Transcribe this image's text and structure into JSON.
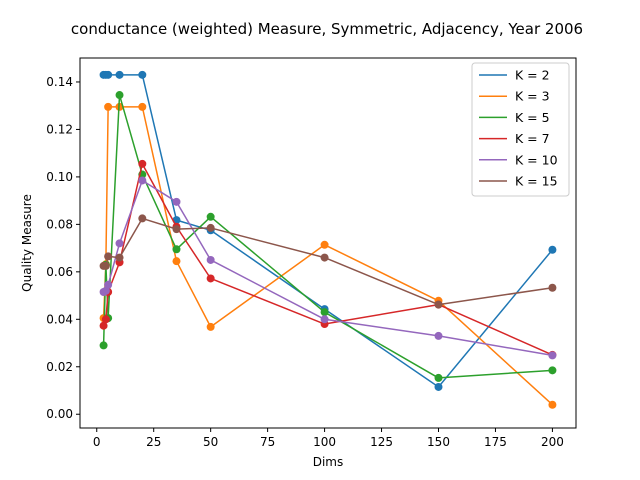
{
  "chart_data": {
    "type": "line",
    "title": "conductance (weighted) Measure, Symmetric, Adjacency, Year 2006",
    "xlabel": "Dims",
    "ylabel": "Quality Measure",
    "xlim": [
      -7.35,
      210.35
    ],
    "ylim": [
      -0.0058,
      0.1501
    ],
    "xticks": [
      0,
      25,
      50,
      75,
      100,
      125,
      150,
      175,
      200
    ],
    "yticks": [
      0.0,
      0.02,
      0.04,
      0.06,
      0.08,
      0.1,
      0.12,
      0.14
    ],
    "ytick_labels": [
      "0.00",
      "0.02",
      "0.04",
      "0.06",
      "0.08",
      "0.10",
      "0.12",
      "0.14"
    ],
    "grid": false,
    "legend_position": "top-right",
    "x": [
      3,
      4,
      5,
      10,
      20,
      35,
      50,
      100,
      150,
      200
    ],
    "series": [
      {
        "name": "K = 2",
        "color": "#1f77b4",
        "values": [
          0.143,
          0.143,
          0.143,
          0.143,
          0.143,
          0.0818,
          0.0775,
          0.0443,
          0.0115,
          0.0693
        ]
      },
      {
        "name": "K = 3",
        "color": "#ff7f0e",
        "values": [
          0.0405,
          0.0632,
          0.1295,
          0.1295,
          0.1295,
          0.0645,
          0.0368,
          0.0714,
          0.0478,
          0.004
        ]
      },
      {
        "name": "K = 5",
        "color": "#2ca02c",
        "values": [
          0.029,
          0.063,
          0.0405,
          0.1345,
          0.101,
          0.0695,
          0.0832,
          0.043,
          0.0153,
          0.0185
        ]
      },
      {
        "name": "K = 7",
        "color": "#d62728",
        "values": [
          0.0373,
          0.04,
          0.0515,
          0.064,
          0.1055,
          0.079,
          0.0572,
          0.038,
          0.0462,
          0.025
        ]
      },
      {
        "name": "K = 10",
        "color": "#9467bd",
        "values": [
          0.0515,
          0.052,
          0.0545,
          0.072,
          0.0985,
          0.0895,
          0.065,
          0.04,
          0.033,
          0.0248
        ]
      },
      {
        "name": "K = 15",
        "color": "#8c564b",
        "values": [
          0.0625,
          0.0625,
          0.0665,
          0.066,
          0.0825,
          0.078,
          0.0785,
          0.066,
          0.0462,
          0.0533
        ]
      }
    ]
  }
}
